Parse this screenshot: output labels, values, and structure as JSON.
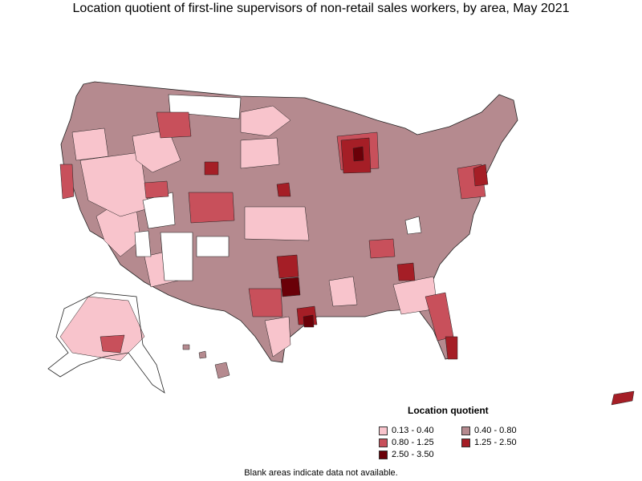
{
  "title": "Location quotient of first-line supervisors of non-retail sales workers, by area, May 2021",
  "legend": {
    "title": "Location quotient",
    "items": [
      {
        "label": "0.13 - 0.40",
        "color": "#f8c4cc"
      },
      {
        "label": "0.40 - 0.80",
        "color": "#b58a8f"
      },
      {
        "label": "0.80 - 1.25",
        "color": "#c8505b"
      },
      {
        "label": "1.25 - 2.50",
        "color": "#a51e26"
      },
      {
        "label": "2.50 - 3.50",
        "color": "#6a0008"
      }
    ]
  },
  "footnote": "Blank areas indicate data not available."
}
